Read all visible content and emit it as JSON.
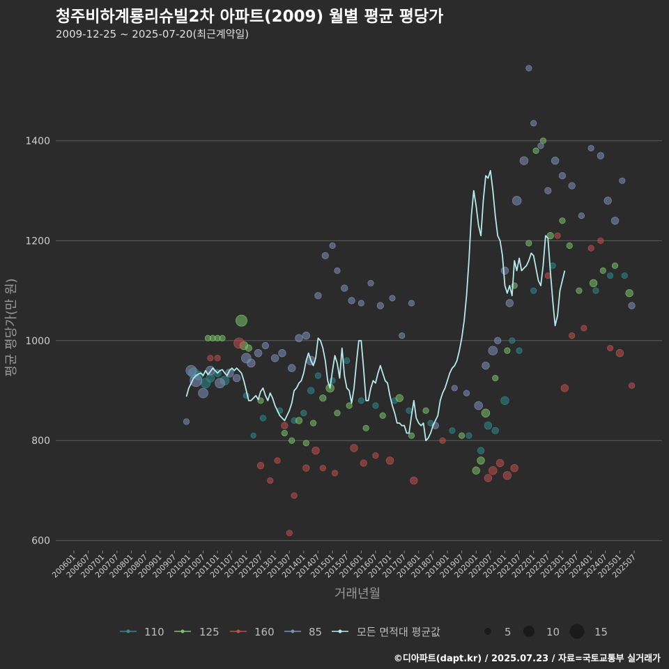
{
  "header": {
    "title": "청주비하계룡리슈빌2차 아파트(2009) 월별 평균 평당가",
    "subtitle": "2009-12-25 ~ 2025-07-20(최근계약일)"
  },
  "caption": "©디아파트(dapt.kr) / 2025.07.23 / 자료=국토교통부 실거래가",
  "colors": {
    "background": "#2b2b2b",
    "grid": "#5c5c5c",
    "s110": "#2e8b8b",
    "s125": "#7cc36a",
    "s160": "#c0504d",
    "s85": "#7f8fb8",
    "avg": "#b8ecec"
  },
  "chart_data": {
    "type": "scatter",
    "title": "청주비하계룡리슈빌2차 아파트(2009) 월별 평균 평당가",
    "subtitle": "2009-12-25 ~ 2025-07-20(최근계약일)",
    "xlabel": "거래년월",
    "ylabel": "평균 평당가(만 원)",
    "ylim": [
      580,
      1570
    ],
    "yticks": [
      600,
      800,
      1000,
      1200,
      1400
    ],
    "x_range": [
      "2006-01",
      "2025-07"
    ],
    "x_tick_labels": [
      "200601",
      "200607",
      "200701",
      "200707",
      "200801",
      "200807",
      "200901",
      "200907",
      "201001",
      "201007",
      "201101",
      "201107",
      "201201",
      "201207",
      "201301",
      "201307",
      "201401",
      "201407",
      "201501",
      "201507",
      "201601",
      "201607",
      "201701",
      "201707",
      "201801",
      "201807",
      "201901",
      "201907",
      "202001",
      "202007",
      "202101",
      "202107",
      "202201",
      "202207",
      "202301",
      "202307",
      "202401",
      "202407",
      "202501",
      "202507"
    ],
    "grid": true,
    "legend_position": "bottom",
    "legend": {
      "series": [
        "110",
        "125",
        "160",
        "85",
        "모든 면적대 평균값"
      ],
      "size_values": [
        5,
        10,
        15
      ]
    },
    "series": [
      {
        "name": "110",
        "color": "#2e8b8b",
        "points": [
          [
            "2010-03",
            935,
            10
          ],
          [
            "2010-05",
            930,
            8
          ],
          [
            "2010-08",
            915,
            9
          ],
          [
            "2010-10",
            925,
            7
          ],
          [
            "2011-01",
            935,
            6
          ],
          [
            "2011-04",
            920,
            8
          ],
          [
            "2012-01",
            890,
            4
          ],
          [
            "2012-04",
            810,
            3
          ],
          [
            "2012-08",
            845,
            4
          ],
          [
            "2013-03",
            860,
            4
          ],
          [
            "2013-09",
            840,
            4
          ],
          [
            "2014-01",
            855,
            4
          ],
          [
            "2014-04",
            900,
            5
          ],
          [
            "2014-07",
            930,
            4
          ],
          [
            "2015-01",
            920,
            4
          ],
          [
            "2015-07",
            960,
            4
          ],
          [
            "2016-01",
            880,
            4
          ],
          [
            "2016-07",
            870,
            4
          ],
          [
            "2017-03",
            880,
            4
          ],
          [
            "2017-09",
            860,
            4
          ],
          [
            "2018-06",
            835,
            4
          ],
          [
            "2019-03",
            820,
            4
          ],
          [
            "2019-10",
            810,
            4
          ],
          [
            "2020-03",
            780,
            5
          ],
          [
            "2020-06",
            830,
            6
          ],
          [
            "2020-09",
            820,
            5
          ],
          [
            "2021-01",
            880,
            7
          ],
          [
            "2021-04",
            1000,
            4
          ],
          [
            "2021-07",
            980,
            4
          ],
          [
            "2022-01",
            1100,
            4
          ],
          [
            "2022-09",
            1150,
            4
          ],
          [
            "2024-03",
            1100,
            4
          ],
          [
            "2024-09",
            1130,
            4
          ],
          [
            "2025-03",
            1130,
            4
          ]
        ]
      },
      {
        "name": "125",
        "color": "#7cc36a",
        "points": [
          [
            "2010-09",
            1005,
            4
          ],
          [
            "2010-11",
            1005,
            4
          ],
          [
            "2011-01",
            1005,
            4
          ],
          [
            "2011-03",
            1005,
            4
          ],
          [
            "2011-11",
            1040,
            11
          ],
          [
            "2011-12",
            990,
            7
          ],
          [
            "2012-02",
            985,
            5
          ],
          [
            "2012-07",
            880,
            4
          ],
          [
            "2013-05",
            815,
            4
          ],
          [
            "2013-08",
            800,
            4
          ],
          [
            "2013-11",
            840,
            5
          ],
          [
            "2014-02",
            795,
            4
          ],
          [
            "2014-05",
            835,
            4
          ],
          [
            "2014-09",
            885,
            5
          ],
          [
            "2014-12",
            905,
            7
          ],
          [
            "2015-03",
            855,
            4
          ],
          [
            "2015-08",
            870,
            4
          ],
          [
            "2016-03",
            825,
            4
          ],
          [
            "2016-10",
            850,
            4
          ],
          [
            "2017-05",
            885,
            6
          ],
          [
            "2017-10",
            810,
            4
          ],
          [
            "2018-04",
            860,
            4
          ],
          [
            "2019-07",
            810,
            4
          ],
          [
            "2020-01",
            740,
            6
          ],
          [
            "2020-03",
            760,
            6
          ],
          [
            "2020-05",
            855,
            7
          ],
          [
            "2020-09",
            925,
            4
          ],
          [
            "2021-02",
            980,
            4
          ],
          [
            "2021-05",
            1110,
            4
          ],
          [
            "2021-11",
            1195,
            4
          ],
          [
            "2022-02",
            1380,
            4
          ],
          [
            "2022-05",
            1400,
            4
          ],
          [
            "2022-08",
            1210,
            5
          ],
          [
            "2023-01",
            1240,
            4
          ],
          [
            "2023-04",
            1190,
            4
          ],
          [
            "2023-08",
            1100,
            4
          ],
          [
            "2024-02",
            1115,
            6
          ],
          [
            "2024-06",
            1140,
            4
          ],
          [
            "2024-11",
            1150,
            4
          ],
          [
            "2025-05",
            1095,
            6
          ]
        ]
      },
      {
        "name": "160",
        "color": "#c0504d",
        "points": [
          [
            "2010-10",
            965,
            4
          ],
          [
            "2011-01",
            965,
            4
          ],
          [
            "2011-10",
            995,
            10
          ],
          [
            "2012-07",
            750,
            5
          ],
          [
            "2012-11",
            720,
            4
          ],
          [
            "2013-02",
            760,
            4
          ],
          [
            "2013-05",
            830,
            5
          ],
          [
            "2013-07",
            615,
            4
          ],
          [
            "2013-09",
            690,
            4
          ],
          [
            "2014-02",
            745,
            5
          ],
          [
            "2014-06",
            780,
            6
          ],
          [
            "2014-09",
            745,
            4
          ],
          [
            "2015-02",
            735,
            4
          ],
          [
            "2015-10",
            785,
            6
          ],
          [
            "2016-02",
            755,
            5
          ],
          [
            "2016-07",
            770,
            4
          ],
          [
            "2017-01",
            760,
            6
          ],
          [
            "2017-11",
            720,
            6
          ],
          [
            "2018-11",
            800,
            4
          ],
          [
            "2020-06",
            725,
            6
          ],
          [
            "2020-08",
            740,
            7
          ],
          [
            "2020-11",
            755,
            6
          ],
          [
            "2021-02",
            730,
            7
          ],
          [
            "2021-05",
            745,
            6
          ],
          [
            "2022-07",
            1130,
            4
          ],
          [
            "2022-11",
            1210,
            4
          ],
          [
            "2023-02",
            905,
            6
          ],
          [
            "2023-05",
            1010,
            4
          ],
          [
            "2023-10",
            1025,
            4
          ],
          [
            "2024-01",
            1185,
            4
          ],
          [
            "2024-05",
            1200,
            4
          ],
          [
            "2024-09",
            985,
            4
          ],
          [
            "2025-01",
            975,
            6
          ],
          [
            "2025-06",
            910,
            4
          ]
        ]
      },
      {
        "name": "85",
        "color": "#7f8fb8",
        "points": [
          [
            "2009-12",
            838,
            4
          ],
          [
            "2010-02",
            940,
            10
          ],
          [
            "2010-04",
            920,
            12
          ],
          [
            "2010-07",
            895,
            9
          ],
          [
            "2010-10",
            940,
            8
          ],
          [
            "2011-02",
            915,
            9
          ],
          [
            "2011-06",
            935,
            7
          ],
          [
            "2011-09",
            925,
            6
          ],
          [
            "2012-01",
            965,
            9
          ],
          [
            "2012-03",
            955,
            7
          ],
          [
            "2012-06",
            975,
            6
          ],
          [
            "2012-09",
            990,
            5
          ],
          [
            "2013-01",
            965,
            6
          ],
          [
            "2013-04",
            975,
            6
          ],
          [
            "2013-08",
            945,
            6
          ],
          [
            "2013-11",
            1005,
            6
          ],
          [
            "2014-02",
            1010,
            6
          ],
          [
            "2014-04",
            960,
            8
          ],
          [
            "2014-07",
            1090,
            5
          ],
          [
            "2014-10",
            1170,
            5
          ],
          [
            "2015-01",
            1190,
            4
          ],
          [
            "2015-03",
            1140,
            4
          ],
          [
            "2015-06",
            1105,
            5
          ],
          [
            "2015-09",
            1080,
            5
          ],
          [
            "2016-01",
            1075,
            4
          ],
          [
            "2016-05",
            1115,
            4
          ],
          [
            "2016-09",
            1070,
            5
          ],
          [
            "2017-02",
            1085,
            4
          ],
          [
            "2017-06",
            1010,
            4
          ],
          [
            "2017-10",
            1075,
            4
          ],
          [
            "2018-08",
            830,
            5
          ],
          [
            "2019-04",
            905,
            4
          ],
          [
            "2019-09",
            895,
            4
          ],
          [
            "2020-02",
            870,
            7
          ],
          [
            "2020-05",
            950,
            6
          ],
          [
            "2020-08",
            980,
            8
          ],
          [
            "2020-10",
            1000,
            5
          ],
          [
            "2021-01",
            1140,
            6
          ],
          [
            "2021-03",
            1075,
            6
          ],
          [
            "2021-06",
            1280,
            8
          ],
          [
            "2021-09",
            1360,
            7
          ],
          [
            "2021-11",
            1545,
            4
          ],
          [
            "2022-01",
            1435,
            4
          ],
          [
            "2022-04",
            1390,
            4
          ],
          [
            "2022-07",
            1300,
            5
          ],
          [
            "2022-10",
            1360,
            6
          ],
          [
            "2023-01",
            1330,
            5
          ],
          [
            "2023-05",
            1310,
            5
          ],
          [
            "2023-09",
            1250,
            4
          ],
          [
            "2024-01",
            1385,
            4
          ],
          [
            "2024-05",
            1370,
            5
          ],
          [
            "2024-08",
            1280,
            6
          ],
          [
            "2024-11",
            1240,
            6
          ],
          [
            "2025-02",
            1320,
            4
          ],
          [
            "2025-06",
            1070,
            5
          ]
        ]
      }
    ],
    "average_series": {
      "name": "모든 면적대 평균값",
      "x_start": "2009-12",
      "values": [
        888,
        905,
        915,
        925,
        930,
        933,
        935,
        930,
        940,
        932,
        938,
        945,
        940,
        935,
        940,
        942,
        935,
        930,
        940,
        945,
        940,
        945,
        940,
        935,
        920,
        900,
        880,
        880,
        885,
        890,
        882,
        898,
        905,
        890,
        880,
        895,
        885,
        870,
        860,
        850,
        845,
        840,
        850,
        860,
        875,
        900,
        905,
        915,
        920,
        935,
        960,
        975,
        960,
        950,
        965,
        1005,
        1000,
        985,
        960,
        920,
        905,
        940,
        970,
        955,
        925,
        985,
        930,
        905,
        900,
        875,
        905,
        955,
        1000,
        1000,
        945,
        880,
        880,
        905,
        920,
        915,
        935,
        950,
        935,
        920,
        915,
        890,
        870,
        855,
        835,
        835,
        830,
        830,
        815,
        815,
        850,
        880,
        845,
        835,
        830,
        835,
        800,
        805,
        815,
        830,
        840,
        850,
        880,
        895,
        905,
        920,
        935,
        945,
        950,
        960,
        980,
        1005,
        1040,
        1090,
        1160,
        1250,
        1300,
        1270,
        1230,
        1210,
        1280,
        1330,
        1325,
        1340,
        1300,
        1250,
        1210,
        1200,
        1170,
        1110,
        1095,
        1110,
        1090,
        1160,
        1140,
        1165,
        1140,
        1145,
        1150,
        1160,
        1175,
        1170,
        1145,
        1120,
        1110,
        1150,
        1210,
        1205,
        1140,
        1080,
        1030,
        1050,
        1100,
        1120,
        1140
      ]
    }
  },
  "legend_labels": {
    "s110": "110",
    "s125": "125",
    "s160": "160",
    "s85": "85",
    "avg": "모든 면적대 평균값",
    "size5": "5",
    "size10": "10",
    "size15": "15"
  }
}
